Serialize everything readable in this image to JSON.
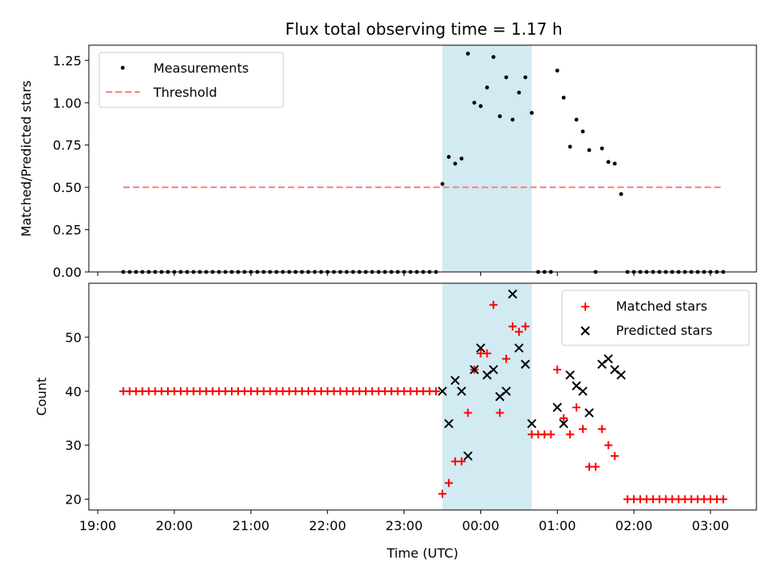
{
  "title": "Flux total observing time = 1.17 h",
  "colors": {
    "measurement": "#000000",
    "threshold": "#ff7f7f",
    "matched": "#ff0000",
    "predicted": "#000000",
    "span": "#add8e6"
  },
  "chart_data": [
    {
      "type": "scatter",
      "panel": "top",
      "ylabel": "Matched/Predicted stars",
      "xlabel": "",
      "ylim": [
        0,
        1.34
      ],
      "yticks": [
        0.0,
        0.25,
        0.5,
        0.75,
        1.0,
        1.25
      ],
      "ytick_labels": [
        "0.00",
        "0.25",
        "0.50",
        "0.75",
        "1.00",
        "1.25"
      ],
      "xlim": [
        "19:00",
        "03:36"
      ],
      "legend": "top-left",
      "highlight_span": [
        "23:30",
        "00:40"
      ],
      "series": [
        {
          "name": "Measurements",
          "kind": "dot",
          "points": [
            [
              "19:20",
              0
            ],
            [
              "19:25",
              0
            ],
            [
              "19:30",
              0
            ],
            [
              "19:35",
              0
            ],
            [
              "19:40",
              0
            ],
            [
              "19:45",
              0
            ],
            [
              "19:50",
              0
            ],
            [
              "19:55",
              0
            ],
            [
              "20:00",
              0
            ],
            [
              "20:05",
              0
            ],
            [
              "20:10",
              0
            ],
            [
              "20:15",
              0
            ],
            [
              "20:20",
              0
            ],
            [
              "20:25",
              0
            ],
            [
              "20:30",
              0
            ],
            [
              "20:35",
              0
            ],
            [
              "20:40",
              0
            ],
            [
              "20:45",
              0
            ],
            [
              "20:50",
              0
            ],
            [
              "20:55",
              0
            ],
            [
              "21:00",
              0
            ],
            [
              "21:05",
              0
            ],
            [
              "21:10",
              0
            ],
            [
              "21:15",
              0
            ],
            [
              "21:20",
              0
            ],
            [
              "21:25",
              0
            ],
            [
              "21:30",
              0
            ],
            [
              "21:35",
              0
            ],
            [
              "21:40",
              0
            ],
            [
              "21:45",
              0
            ],
            [
              "21:50",
              0
            ],
            [
              "21:55",
              0
            ],
            [
              "22:00",
              0
            ],
            [
              "22:05",
              0
            ],
            [
              "22:10",
              0
            ],
            [
              "22:15",
              0
            ],
            [
              "22:20",
              0
            ],
            [
              "22:25",
              0
            ],
            [
              "22:30",
              0
            ],
            [
              "22:35",
              0
            ],
            [
              "22:40",
              0
            ],
            [
              "22:45",
              0
            ],
            [
              "22:50",
              0
            ],
            [
              "22:55",
              0
            ],
            [
              "23:00",
              0
            ],
            [
              "23:05",
              0
            ],
            [
              "23:10",
              0
            ],
            [
              "23:15",
              0
            ],
            [
              "23:20",
              0
            ],
            [
              "23:25",
              0
            ],
            [
              "23:30",
              0.52
            ],
            [
              "23:35",
              0.68
            ],
            [
              "23:40",
              0.64
            ],
            [
              "23:45",
              0.67
            ],
            [
              "23:50",
              1.29
            ],
            [
              "23:55",
              1.0
            ],
            [
              "00:00",
              0.98
            ],
            [
              "00:05",
              1.09
            ],
            [
              "00:10",
              1.27
            ],
            [
              "00:15",
              0.92
            ],
            [
              "00:20",
              1.15
            ],
            [
              "00:25",
              0.9
            ],
            [
              "00:30",
              1.06
            ],
            [
              "00:35",
              1.15
            ],
            [
              "00:40",
              0.94
            ],
            [
              "00:45",
              0
            ],
            [
              "00:50",
              0
            ],
            [
              "00:55",
              0
            ],
            [
              "01:00",
              1.19
            ],
            [
              "01:05",
              1.03
            ],
            [
              "01:10",
              0.74
            ],
            [
              "01:15",
              0.9
            ],
            [
              "01:20",
              0.83
            ],
            [
              "01:25",
              0.72
            ],
            [
              "01:30",
              0
            ],
            [
              "01:35",
              0.73
            ],
            [
              "01:40",
              0.65
            ],
            [
              "01:45",
              0.64
            ],
            [
              "01:50",
              0.46
            ],
            [
              "01:55",
              0
            ],
            [
              "02:00",
              0
            ],
            [
              "02:05",
              0
            ],
            [
              "02:10",
              0
            ],
            [
              "02:15",
              0
            ],
            [
              "02:20",
              0
            ],
            [
              "02:25",
              0
            ],
            [
              "02:30",
              0
            ],
            [
              "02:35",
              0
            ],
            [
              "02:40",
              0
            ],
            [
              "02:45",
              0
            ],
            [
              "02:50",
              0
            ],
            [
              "02:55",
              0
            ],
            [
              "03:00",
              0
            ],
            [
              "03:05",
              0
            ],
            [
              "03:10",
              0
            ]
          ]
        },
        {
          "name": "Threshold",
          "kind": "dashed-line",
          "points": [
            [
              "19:20",
              0.5
            ],
            [
              "03:10",
              0.5
            ]
          ]
        }
      ]
    },
    {
      "type": "scatter",
      "panel": "bottom",
      "ylabel": "Count",
      "xlabel": "Time (UTC)",
      "ylim": [
        18,
        60
      ],
      "yticks": [
        20,
        30,
        40,
        50
      ],
      "ytick_labels": [
        "20",
        "30",
        "40",
        "50"
      ],
      "xlim": [
        "19:00",
        "03:36"
      ],
      "xticks": [
        "19:00",
        "20:00",
        "21:00",
        "22:00",
        "23:00",
        "00:00",
        "01:00",
        "02:00",
        "03:00"
      ],
      "legend": "top-right",
      "highlight_span": [
        "23:30",
        "00:40"
      ],
      "series": [
        {
          "name": "Matched stars",
          "kind": "plus",
          "points": [
            [
              "19:20",
              40
            ],
            [
              "19:25",
              40
            ],
            [
              "19:30",
              40
            ],
            [
              "19:35",
              40
            ],
            [
              "19:40",
              40
            ],
            [
              "19:45",
              40
            ],
            [
              "19:50",
              40
            ],
            [
              "19:55",
              40
            ],
            [
              "20:00",
              40
            ],
            [
              "20:05",
              40
            ],
            [
              "20:10",
              40
            ],
            [
              "20:15",
              40
            ],
            [
              "20:20",
              40
            ],
            [
              "20:25",
              40
            ],
            [
              "20:30",
              40
            ],
            [
              "20:35",
              40
            ],
            [
              "20:40",
              40
            ],
            [
              "20:45",
              40
            ],
            [
              "20:50",
              40
            ],
            [
              "20:55",
              40
            ],
            [
              "21:00",
              40
            ],
            [
              "21:05",
              40
            ],
            [
              "21:10",
              40
            ],
            [
              "21:15",
              40
            ],
            [
              "21:20",
              40
            ],
            [
              "21:25",
              40
            ],
            [
              "21:30",
              40
            ],
            [
              "21:35",
              40
            ],
            [
              "21:40",
              40
            ],
            [
              "21:45",
              40
            ],
            [
              "21:50",
              40
            ],
            [
              "21:55",
              40
            ],
            [
              "22:00",
              40
            ],
            [
              "22:05",
              40
            ],
            [
              "22:10",
              40
            ],
            [
              "22:15",
              40
            ],
            [
              "22:20",
              40
            ],
            [
              "22:25",
              40
            ],
            [
              "22:30",
              40
            ],
            [
              "22:35",
              40
            ],
            [
              "22:40",
              40
            ],
            [
              "22:45",
              40
            ],
            [
              "22:50",
              40
            ],
            [
              "22:55",
              40
            ],
            [
              "23:00",
              40
            ],
            [
              "23:05",
              40
            ],
            [
              "23:10",
              40
            ],
            [
              "23:15",
              40
            ],
            [
              "23:20",
              40
            ],
            [
              "23:25",
              40
            ],
            [
              "23:30",
              21
            ],
            [
              "23:35",
              23
            ],
            [
              "23:40",
              27
            ],
            [
              "23:45",
              27
            ],
            [
              "23:50",
              36
            ],
            [
              "23:55",
              44
            ],
            [
              "00:00",
              47
            ],
            [
              "00:05",
              47
            ],
            [
              "00:10",
              56
            ],
            [
              "00:15",
              36
            ],
            [
              "00:20",
              46
            ],
            [
              "00:25",
              52
            ],
            [
              "00:30",
              51
            ],
            [
              "00:35",
              52
            ],
            [
              "00:40",
              32
            ],
            [
              "00:45",
              32
            ],
            [
              "00:50",
              32
            ],
            [
              "00:55",
              32
            ],
            [
              "01:00",
              44
            ],
            [
              "01:05",
              35
            ],
            [
              "01:10",
              32
            ],
            [
              "01:15",
              37
            ],
            [
              "01:20",
              33
            ],
            [
              "01:25",
              26
            ],
            [
              "01:30",
              26
            ],
            [
              "01:35",
              33
            ],
            [
              "01:40",
              30
            ],
            [
              "01:45",
              28
            ],
            [
              "01:55",
              20
            ],
            [
              "02:00",
              20
            ],
            [
              "02:05",
              20
            ],
            [
              "02:10",
              20
            ],
            [
              "02:15",
              20
            ],
            [
              "02:20",
              20
            ],
            [
              "02:25",
              20
            ],
            [
              "02:30",
              20
            ],
            [
              "02:35",
              20
            ],
            [
              "02:40",
              20
            ],
            [
              "02:45",
              20
            ],
            [
              "02:50",
              20
            ],
            [
              "02:55",
              20
            ],
            [
              "03:00",
              20
            ],
            [
              "03:05",
              20
            ],
            [
              "03:10",
              20
            ]
          ]
        },
        {
          "name": "Predicted stars",
          "kind": "x",
          "points": [
            [
              "23:30",
              40
            ],
            [
              "23:35",
              34
            ],
            [
              "23:40",
              42
            ],
            [
              "23:45",
              40
            ],
            [
              "23:50",
              28
            ],
            [
              "23:55",
              44
            ],
            [
              "00:00",
              48
            ],
            [
              "00:05",
              43
            ],
            [
              "00:10",
              44
            ],
            [
              "00:15",
              39
            ],
            [
              "00:20",
              40
            ],
            [
              "00:25",
              58
            ],
            [
              "00:30",
              48
            ],
            [
              "00:35",
              45
            ],
            [
              "00:40",
              34
            ],
            [
              "01:00",
              37
            ],
            [
              "01:05",
              34
            ],
            [
              "01:10",
              43
            ],
            [
              "01:15",
              41
            ],
            [
              "01:20",
              40
            ],
            [
              "01:25",
              36
            ],
            [
              "01:35",
              45
            ],
            [
              "01:40",
              46
            ],
            [
              "01:45",
              44
            ],
            [
              "01:50",
              43
            ]
          ]
        }
      ]
    }
  ]
}
